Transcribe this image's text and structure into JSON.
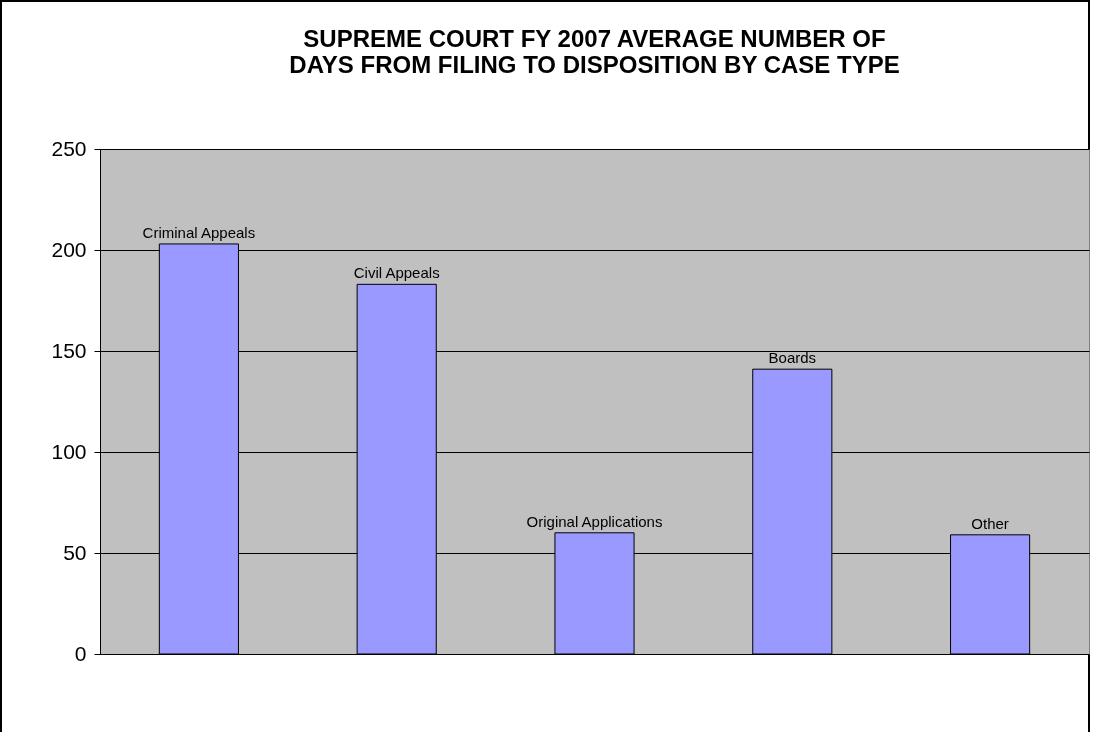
{
  "chart_data": {
    "type": "bar",
    "title": [
      "SUPREME COURT FY 2007 AVERAGE NUMBER OF",
      "DAYS FROM FILING TO DISPOSITION BY CASE TYPE"
    ],
    "categories": [
      "Criminal Appeals",
      "Civil Appeals",
      "Original Applications",
      "Boards",
      "Other"
    ],
    "values": [
      203,
      183,
      60,
      141,
      59
    ],
    "color": "#9999ff",
    "ylim": [
      0,
      250
    ],
    "yticks": [
      0,
      50,
      100,
      150,
      200,
      250
    ],
    "grid": "y"
  }
}
